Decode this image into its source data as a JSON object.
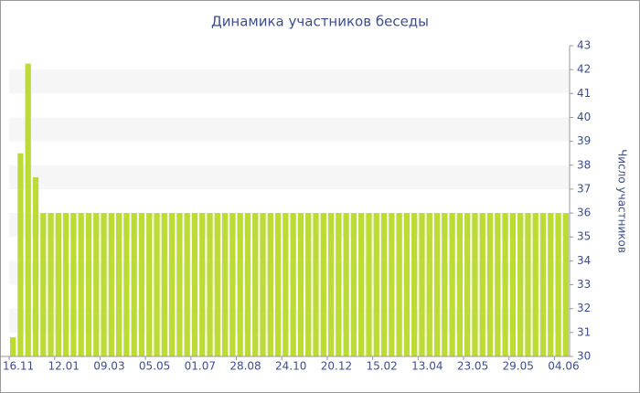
{
  "chart_data": {
    "type": "bar",
    "title": "Динамика участников беседы",
    "y_label": "Число участников",
    "categories": [
      "16.11",
      null,
      null,
      null,
      null,
      null,
      "12.01",
      null,
      null,
      null,
      null,
      null,
      "09.03",
      null,
      null,
      null,
      null,
      null,
      "05.05",
      null,
      null,
      null,
      null,
      null,
      "01.07",
      null,
      null,
      null,
      null,
      null,
      "28.08",
      null,
      null,
      null,
      null,
      null,
      "24.10",
      null,
      null,
      null,
      null,
      null,
      "20.12",
      null,
      null,
      null,
      null,
      null,
      "15.02",
      null,
      null,
      null,
      null,
      null,
      "13.04",
      null,
      null,
      null,
      null,
      null,
      "23.05",
      null,
      null,
      null,
      null,
      null,
      "29.05",
      null,
      null,
      null,
      null,
      null,
      "04.06",
      null
    ],
    "values": [
      30.8,
      38.5,
      42.25,
      37.5,
      36,
      36,
      36,
      36,
      36,
      36,
      36,
      36,
      36,
      36,
      36,
      36,
      36,
      36,
      36,
      36,
      36,
      36,
      36,
      36,
      36,
      36,
      36,
      36,
      36,
      36,
      36,
      36,
      36,
      36,
      36,
      36,
      36,
      36,
      36,
      36,
      36,
      36,
      36,
      36,
      36,
      36,
      36,
      36,
      36,
      36,
      36,
      36,
      36,
      36,
      36,
      36,
      36,
      36,
      36,
      36,
      36,
      36,
      36,
      36,
      36,
      36,
      36,
      36,
      36,
      36,
      36,
      36,
      36,
      36
    ],
    "color": "#bcdc35",
    "ylim": [
      30,
      43
    ],
    "yticks": [
      30,
      31,
      32,
      33,
      34,
      35,
      36,
      37,
      38,
      39,
      40,
      41,
      42,
      43
    ],
    "y_axis_side": "right",
    "grid": "bands"
  }
}
